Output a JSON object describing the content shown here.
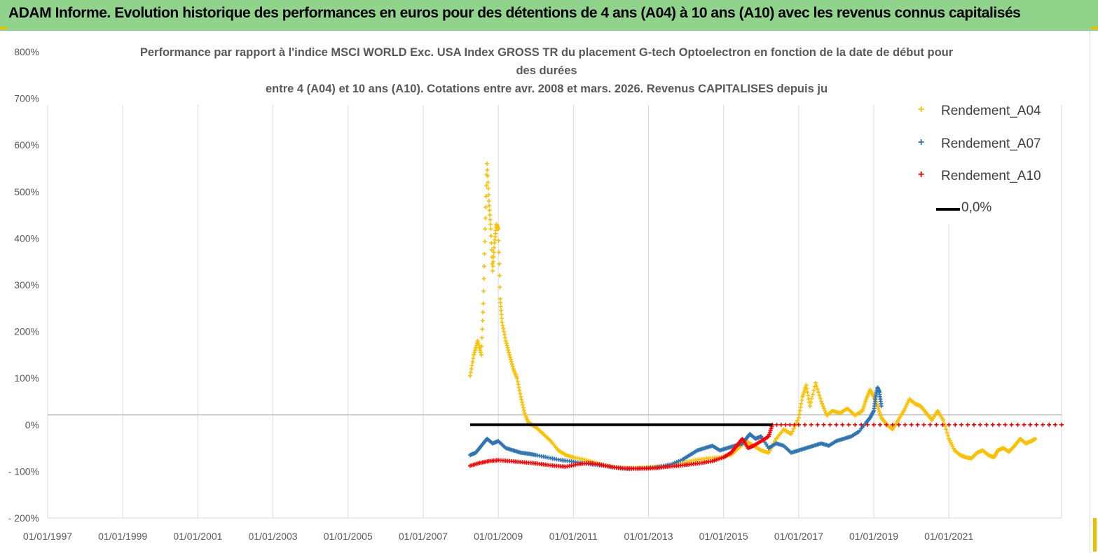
{
  "banner": {
    "title": "ADAM Informe. Evolution historique des performances en euros pour des détentions de 4 ans (A04) à 10 ans (A10) avec les revenus connus capitalisés"
  },
  "colors": {
    "banner_bg": "#8fd48a",
    "a04": "#ffc000",
    "a07": "#2e75b6",
    "a10": "#ff0000",
    "zero_line": "#000000",
    "grid": "#d9d9d9"
  },
  "chart_data": {
    "type": "scatter",
    "title_lines": [
      "Performance par rapport à l'indice MSCI WORLD Exc. USA Index GROSS TR  du placement G-tech Optoelectron  en fonction de la date de début pour",
      "des durées",
      "entre 4 (A04) et 10 ans (A10). Cotations entre avr. 2008 et mars. 2026. Revenus CAPITALISES depuis ju"
    ],
    "y_unit": "%",
    "ylim": [
      -200,
      800
    ],
    "y_ticks": [
      "800%",
      "700%",
      "600%",
      "500%",
      "400%",
      "300%",
      "200%",
      "100%",
      "0%",
      "- 100%",
      "- 200%"
    ],
    "y_tick_values": [
      800,
      700,
      600,
      500,
      400,
      300,
      200,
      100,
      0,
      -100,
      -200
    ],
    "xlim": [
      1997.0,
      2024.0
    ],
    "x_ticks": [
      "01/01/1997",
      "01/01/1999",
      "01/01/2001",
      "01/01/2003",
      "01/01/2005",
      "01/01/2007",
      "01/01/2009",
      "01/01/2011",
      "01/01/2013",
      "01/01/2015",
      "01/01/2017",
      "01/01/2019",
      "01/01/2021"
    ],
    "x_tick_values": [
      1997,
      1999,
      2001,
      2003,
      2005,
      2007,
      2009,
      2011,
      2013,
      2015,
      2017,
      2019,
      2021
    ],
    "legend": [
      "Rendement_A04",
      "Rendement_A07",
      "Rendement_A10",
      "0,0%"
    ],
    "series": [
      {
        "name": "Rendement_A04",
        "marker": "+",
        "x": [
          2008.25,
          2008.35,
          2008.45,
          2008.55,
          2008.6,
          2008.65,
          2008.7,
          2008.75,
          2008.8,
          2008.85,
          2008.9,
          2008.95,
          2009.0,
          2009.05,
          2009.1,
          2009.2,
          2009.3,
          2009.4,
          2009.5,
          2009.6,
          2009.7,
          2009.8,
          2009.9,
          2010.0,
          2010.2,
          2010.4,
          2010.6,
          2010.8,
          2011.0,
          2011.3,
          2011.6,
          2011.9,
          2012.2,
          2012.5,
          2012.8,
          2013.1,
          2013.4,
          2013.7,
          2014.0,
          2014.3,
          2014.6,
          2014.9,
          2015.2,
          2015.4,
          2015.6,
          2015.8,
          2016.0,
          2016.2,
          2016.4,
          2016.6,
          2016.8,
          2017.0,
          2017.1,
          2017.2,
          2017.3,
          2017.45,
          2017.6,
          2017.75,
          2017.9,
          2018.1,
          2018.3,
          2018.5,
          2018.7,
          2018.8,
          2018.9,
          2019.0,
          2019.1,
          2019.2,
          2019.35,
          2019.5,
          2019.65,
          2019.8,
          2019.95,
          2020.1,
          2020.25,
          2020.4,
          2020.55,
          2020.7,
          2020.85,
          2021.0,
          2021.15,
          2021.3,
          2021.45,
          2021.6,
          2021.75,
          2021.9,
          2022.05,
          2022.2,
          2022.3,
          2022.45,
          2022.6,
          2022.75,
          2022.9,
          2023.05,
          2023.2,
          2023.3
        ],
        "y": [
          105,
          150,
          180,
          150,
          260,
          420,
          560,
          480,
          420,
          330,
          390,
          430,
          420,
          270,
          220,
          180,
          150,
          120,
          100,
          60,
          25,
          5,
          0,
          -5,
          -20,
          -35,
          -55,
          -65,
          -70,
          -75,
          -82,
          -88,
          -92,
          -93,
          -92,
          -90,
          -88,
          -85,
          -80,
          -75,
          -72,
          -70,
          -65,
          -50,
          -35,
          -45,
          -55,
          -60,
          -30,
          -10,
          -20,
          15,
          60,
          85,
          40,
          90,
          50,
          20,
          30,
          25,
          35,
          20,
          30,
          55,
          75,
          60,
          40,
          15,
          0,
          -10,
          10,
          30,
          55,
          45,
          40,
          25,
          10,
          30,
          10,
          -30,
          -55,
          -65,
          -70,
          -72,
          -60,
          -55,
          -65,
          -70,
          -55,
          -50,
          -58,
          -45,
          -30,
          -40,
          -35,
          -30
        ],
        "color": "#ffc000"
      },
      {
        "name": "Rendement_A07",
        "marker": "+",
        "x": [
          2008.25,
          2008.4,
          2008.55,
          2008.7,
          2008.85,
          2009.0,
          2009.2,
          2009.4,
          2009.6,
          2009.8,
          2010.0,
          2010.3,
          2010.6,
          2010.9,
          2011.2,
          2011.5,
          2011.8,
          2012.1,
          2012.4,
          2012.7,
          2013.0,
          2013.3,
          2013.6,
          2013.9,
          2014.1,
          2014.3,
          2014.5,
          2014.7,
          2014.9,
          2015.1,
          2015.3,
          2015.5,
          2015.6,
          2015.7,
          2015.85,
          2016.0,
          2016.2,
          2016.4,
          2016.6,
          2016.8,
          2017.0,
          2017.2,
          2017.4,
          2017.6,
          2017.8,
          2018.0,
          2018.2,
          2018.4,
          2018.6,
          2018.8,
          2018.9,
          2019.0,
          2019.05,
          2019.1,
          2019.15,
          2019.2
        ],
        "y": [
          -65,
          -60,
          -45,
          -30,
          -40,
          -35,
          -50,
          -55,
          -60,
          -62,
          -65,
          -70,
          -75,
          -78,
          -82,
          -85,
          -88,
          -92,
          -95,
          -94,
          -93,
          -90,
          -85,
          -75,
          -65,
          -55,
          -50,
          -45,
          -55,
          -50,
          -45,
          -40,
          -30,
          -20,
          -30,
          -25,
          -50,
          -40,
          -45,
          -60,
          -55,
          -50,
          -45,
          -40,
          -45,
          -35,
          -30,
          -25,
          -15,
          5,
          15,
          30,
          60,
          80,
          70,
          40
        ],
        "color": "#2e75b6"
      },
      {
        "name": "Rendement_A10",
        "marker": "+",
        "x": [
          2008.25,
          2008.5,
          2008.75,
          2009.0,
          2009.3,
          2009.6,
          2009.9,
          2010.2,
          2010.5,
          2010.8,
          2011.1,
          2011.4,
          2011.7,
          2012.0,
          2012.3,
          2012.6,
          2012.9,
          2013.2,
          2013.5,
          2013.8,
          2014.1,
          2014.4,
          2014.7,
          2015.0,
          2015.2,
          2015.35,
          2015.5,
          2015.65,
          2015.8,
          2016.0,
          2016.2,
          2016.3,
          2017.0,
          2018.0,
          2019.0,
          2020.0,
          2021.0,
          2022.0,
          2023.0,
          2024.0
        ],
        "y": [
          -88,
          -82,
          -78,
          -76,
          -78,
          -80,
          -82,
          -85,
          -88,
          -90,
          -85,
          -82,
          -85,
          -90,
          -93,
          -94,
          -94,
          -93,
          -90,
          -88,
          -85,
          -82,
          -78,
          -70,
          -60,
          -45,
          -30,
          -50,
          -45,
          -35,
          -25,
          0,
          0,
          0,
          0,
          0,
          0,
          0,
          0,
          0
        ],
        "color": "#ff0000"
      },
      {
        "name": "0,0%",
        "type": "line",
        "x": [
          2008.25,
          2016.3
        ],
        "y": [
          0,
          0
        ],
        "color": "#000000"
      }
    ]
  }
}
